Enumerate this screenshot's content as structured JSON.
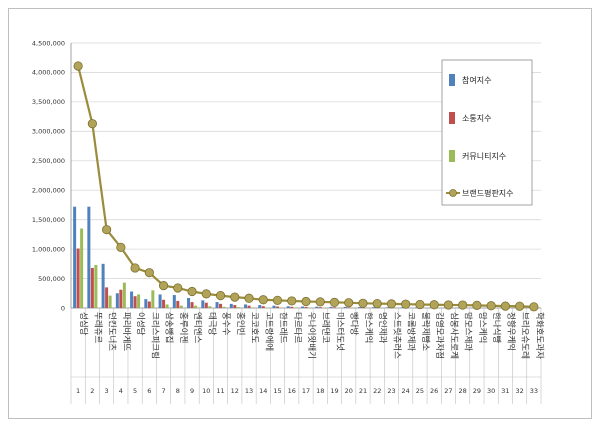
{
  "chart_data": {
    "type": "bar",
    "title": "",
    "xlabel": "",
    "ylabel": "",
    "ylim": [
      0,
      4500000
    ],
    "yticks": [
      0,
      500000,
      1000000,
      1500000,
      2000000,
      2500000,
      3000000,
      3500000,
      4000000,
      4500000
    ],
    "ytick_labels": [
      "0",
      "500,000",
      "1,000,000",
      "1,500,000",
      "2,000,000",
      "2,500,000",
      "3,000,000",
      "3,500,000",
      "4,000,000",
      "4,500,000"
    ],
    "grid": true,
    "legend_position": "right",
    "index_labels": [
      "1",
      "2",
      "3",
      "4",
      "5",
      "6",
      "7",
      "8",
      "9",
      "10",
      "11",
      "12",
      "13",
      "14",
      "15",
      "16",
      "17",
      "18",
      "19",
      "20",
      "21",
      "22",
      "23",
      "24",
      "25",
      "26",
      "27",
      "28",
      "29",
      "30",
      "31",
      "32",
      "33"
    ],
    "categories": [
      "성심당",
      "뚜레쥬르",
      "던킨도너츠",
      "파리바게뜨",
      "이성당",
      "크리스피크림",
      "삼송빵집",
      "홍루이젠",
      "엔티엔스",
      "태극당",
      "풍수수",
      "홍인빈",
      "코코호도",
      "고트랑에에",
      "한트레드",
      "타르타르",
      "우나이왓배기",
      "브레댄코",
      "미스터도넛",
      "빵다방",
      "한스케익",
      "명인제과",
      "스트릿츄러스",
      "코롬방제과",
      "불락제빵소",
      "김영모과자점",
      "심봉사도로케",
      "맘모스제과",
      "망스케익",
      "한나식빵",
      "정향우케익",
      "브리오슈도레",
      "학화호도과자"
    ],
    "series": [
      {
        "name": "참여지수",
        "color": "#4f81bd",
        "values": [
          1720000,
          1720000,
          750000,
          250000,
          280000,
          150000,
          230000,
          220000,
          170000,
          130000,
          100000,
          70000,
          60000,
          50000,
          40000,
          30000,
          25000,
          22000,
          20000,
          18000,
          15000,
          14000,
          12000,
          10000,
          9000,
          8000,
          7000,
          6000,
          5000,
          4000,
          3000,
          2000,
          1500
        ]
      },
      {
        "name": "소통지수",
        "color": "#c0504d",
        "values": [
          1010000,
          680000,
          350000,
          310000,
          200000,
          110000,
          140000,
          120000,
          100000,
          90000,
          70000,
          50000,
          40000,
          30000,
          25000,
          20000,
          18000,
          15000,
          12000,
          10000,
          9000,
          8000,
          7000,
          6000,
          5000,
          4000,
          3500,
          3000,
          2500,
          2000,
          1500,
          1000,
          800
        ]
      },
      {
        "name": "커뮤니티지수",
        "color": "#9bbb59",
        "values": [
          1350000,
          730000,
          210000,
          430000,
          230000,
          300000,
          60000,
          40000,
          40000,
          30000,
          20000,
          15000,
          10000,
          8000,
          7000,
          6000,
          5000,
          4000,
          3500,
          3000,
          2500,
          2000,
          1800,
          1500,
          1200,
          1000,
          900,
          800,
          700,
          600,
          500,
          400,
          300
        ]
      },
      {
        "name": "브랜드평판지수",
        "color": "#9a8c3c",
        "values": [
          4110000,
          3130000,
          1330000,
          1030000,
          680000,
          600000,
          380000,
          340000,
          280000,
          240000,
          210000,
          185000,
          165000,
          140000,
          130000,
          120000,
          110000,
          105000,
          95000,
          90000,
          80000,
          75000,
          70000,
          65000,
          60000,
          55000,
          52000,
          50000,
          45000,
          38000,
          32000,
          30000,
          20000
        ]
      }
    ]
  }
}
